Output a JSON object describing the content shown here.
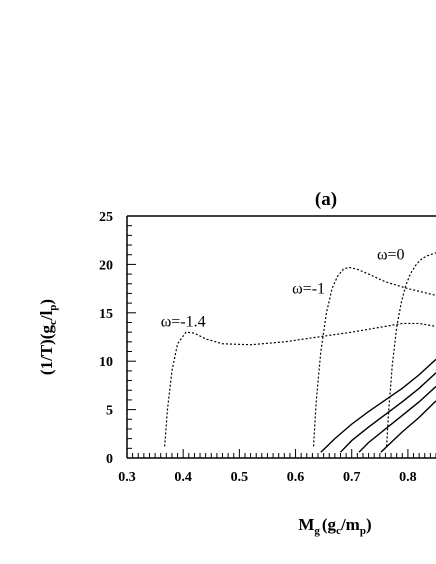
{
  "chart_data": {
    "type": "line",
    "title": "(a)",
    "xlabel": {
      "main": "M",
      "sub1": "g",
      "mid": "(g",
      "sub2": "c",
      "slash": "/m",
      "sub3": "p",
      "end": ")"
    },
    "ylabel": {
      "main": "(1/T)(g",
      "sub1": "c",
      "slash": "/l",
      "sub2": "p",
      "end": ")"
    },
    "xlim": [
      0.3,
      0.85
    ],
    "ylim": [
      0,
      25
    ],
    "xticks": [
      0.3,
      0.4,
      0.5,
      0.6,
      0.7,
      0.8
    ],
    "xtick_labels": [
      "0.3",
      "0.4",
      "0.5",
      "0.6",
      "0.7",
      "0.8"
    ],
    "yticks": [
      0,
      5,
      10,
      15,
      20,
      25
    ],
    "ytick_labels": [
      "0",
      "5",
      "10",
      "15",
      "20",
      "25"
    ],
    "annotations": [
      {
        "text": "ω=-1.4",
        "x": 0.36,
        "y": 13.6
      },
      {
        "text": "ω=-1",
        "x": 0.594,
        "y": 17.0
      },
      {
        "text": "ω=0",
        "x": 0.745,
        "y": 20.5
      }
    ],
    "series": [
      {
        "style": "dotted",
        "x": [
          0.367,
          0.372,
          0.38,
          0.39,
          0.405,
          0.42,
          0.44,
          0.47,
          0.52,
          0.58,
          0.64,
          0.7,
          0.75,
          0.79,
          0.82,
          0.84,
          0.85
        ],
        "y": [
          1.2,
          5,
          9,
          11.8,
          13.0,
          12.9,
          12.3,
          11.8,
          11.7,
          12.0,
          12.5,
          13.0,
          13.5,
          13.9,
          13.9,
          13.7,
          13.6
        ]
      },
      {
        "style": "dotted",
        "x": [
          0.632,
          0.637,
          0.645,
          0.655,
          0.665,
          0.675,
          0.685,
          0.695,
          0.71,
          0.73,
          0.76,
          0.8,
          0.85
        ],
        "y": [
          1.2,
          6,
          11,
          15,
          17.5,
          18.8,
          19.5,
          19.7,
          19.5,
          19.0,
          18.2,
          17.5,
          16.8
        ]
      },
      {
        "style": "dotted",
        "x": [
          0.762,
          0.766,
          0.772,
          0.78,
          0.788,
          0.796,
          0.805,
          0.815,
          0.825,
          0.835,
          0.845,
          0.85
        ],
        "y": [
          1.2,
          5,
          9.5,
          13.5,
          16,
          17.8,
          19.1,
          20.0,
          20.6,
          20.9,
          21.1,
          21.2
        ]
      },
      {
        "style": "solid",
        "x": [
          0.645,
          0.67,
          0.7,
          0.73,
          0.76,
          0.79,
          0.82,
          0.85
        ],
        "y": [
          0.6,
          2.0,
          3.5,
          4.8,
          6.0,
          7.2,
          8.6,
          10.2
        ]
      },
      {
        "style": "solid",
        "x": [
          0.68,
          0.7,
          0.73,
          0.76,
          0.79,
          0.82,
          0.85
        ],
        "y": [
          0.6,
          1.8,
          3.2,
          4.5,
          5.8,
          7.2,
          8.8
        ]
      },
      {
        "style": "solid",
        "x": [
          0.713,
          0.73,
          0.76,
          0.79,
          0.82,
          0.85
        ],
        "y": [
          0.6,
          1.6,
          3.0,
          4.4,
          5.8,
          7.4
        ]
      },
      {
        "style": "solid",
        "x": [
          0.752,
          0.77,
          0.79,
          0.82,
          0.85
        ],
        "y": [
          0.6,
          1.6,
          2.7,
          4.2,
          5.9
        ]
      }
    ]
  }
}
